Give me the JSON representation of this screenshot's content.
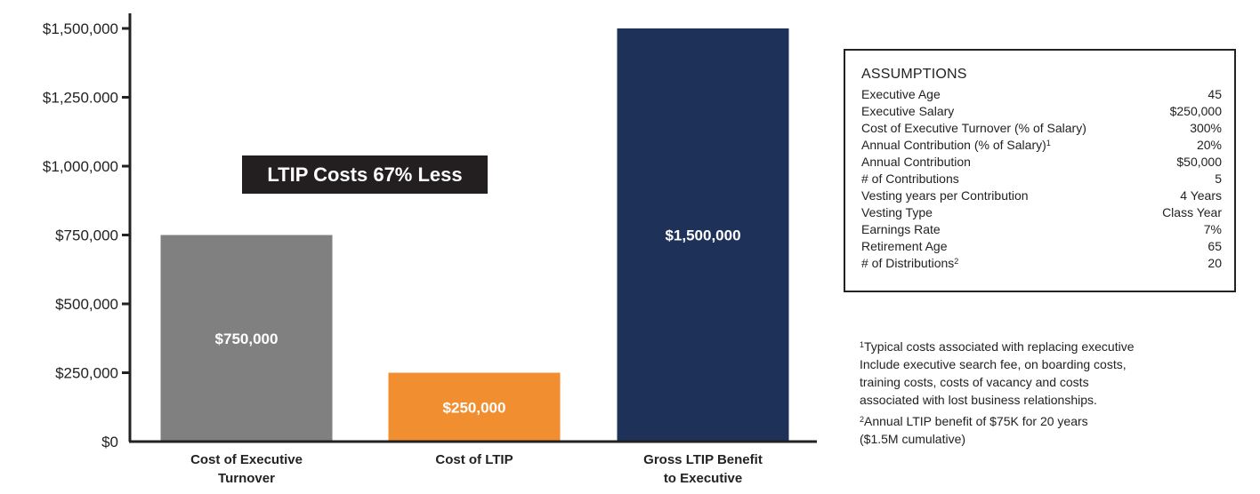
{
  "chart_data": {
    "type": "bar",
    "categories": [
      "Cost of Executive Turnover",
      "Cost of LTIP",
      "Gross LTIP Benefit to Executive"
    ],
    "category_lines": [
      [
        "Cost of Executive",
        "Turnover"
      ],
      [
        "Cost of LTIP"
      ],
      [
        "Gross LTIP Benefit",
        "to Executive"
      ]
    ],
    "values": [
      750000,
      250000,
      1500000
    ],
    "data_labels": [
      "$750,000",
      "$250,000",
      "$1,500,000"
    ],
    "colors": [
      "#808080",
      "#f18e2f",
      "#1e3158"
    ],
    "ylim": [
      0,
      1500000
    ],
    "yticks": [
      0,
      250000,
      500000,
      750000,
      1000000,
      1250000,
      1500000
    ],
    "ytick_labels": [
      "$0",
      "$250,000",
      "$500,000",
      "$750,000",
      "$1,000,000",
      "$1,250.000",
      "$1,500,000"
    ],
    "title": "",
    "xlabel": "",
    "ylabel": "",
    "grid": false,
    "annotation": "LTIP Costs 67% Less"
  },
  "assumptions": {
    "title": "ASSUMPTIONS",
    "rows": [
      {
        "label": "Executive Age",
        "sup": "",
        "value": "45"
      },
      {
        "label": "Executive Salary",
        "sup": "",
        "value": "$250,000"
      },
      {
        "label": "Cost of Executive Turnover (% of Salary)",
        "sup": "",
        "value": "300%"
      },
      {
        "label": "Annual Contribution (% of Salary)",
        "sup": "1",
        "value": "20%"
      },
      {
        "label": "Annual Contribution",
        "sup": "",
        "value": "$50,000"
      },
      {
        "label": "#  of Contributions",
        "sup": "",
        "value": "5"
      },
      {
        "label": "Vesting years per Contribution",
        "sup": "",
        "value": "4 Years"
      },
      {
        "label": "Vesting Type",
        "sup": "",
        "value": "Class Year"
      },
      {
        "label": "Earnings Rate",
        "sup": "",
        "value": "7%"
      },
      {
        "label": "Retirement Age",
        "sup": "",
        "value": "65"
      },
      {
        "label": "# of Distributions",
        "sup": "2",
        "value": "20"
      }
    ]
  },
  "footnotes": [
    {
      "marker": "1",
      "lines": [
        "Typical costs associated with replacing executive",
        "Include executive search fee, on boarding costs,",
        "training costs, costs of vacancy and costs",
        "associated with lost business relationships."
      ]
    },
    {
      "marker": "2",
      "lines": [
        "Annual LTIP benefit of $75K for 20 years",
        "($1.5M cumulative)"
      ]
    }
  ]
}
